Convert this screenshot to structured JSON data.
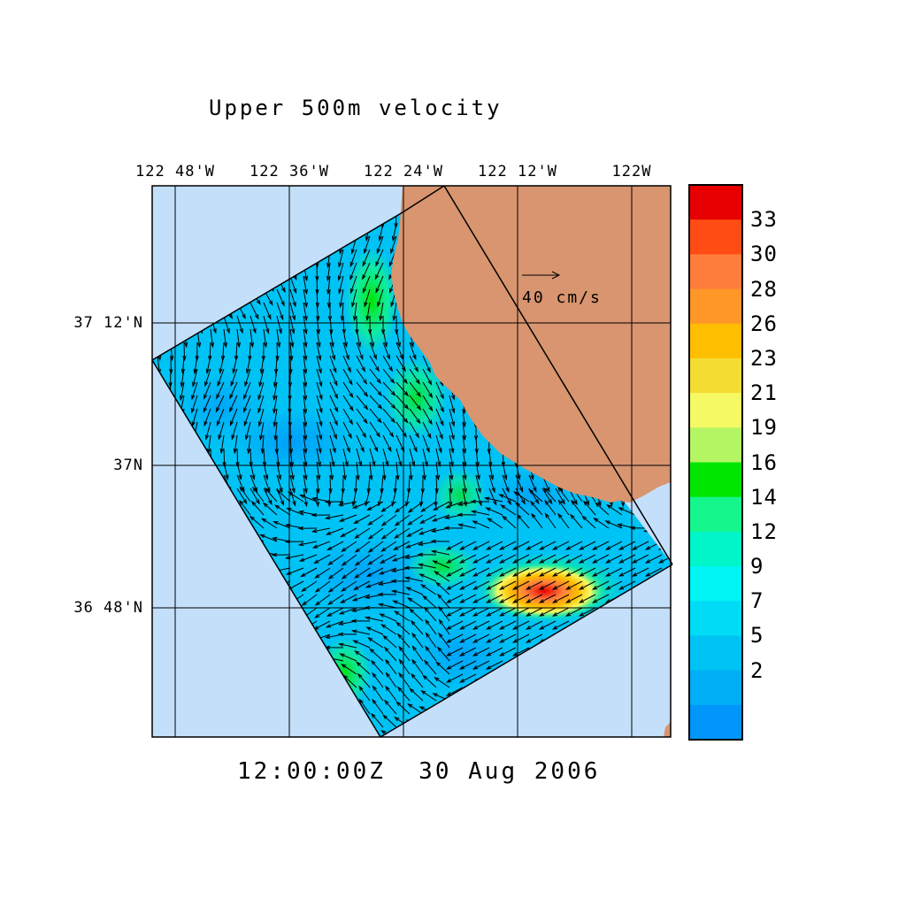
{
  "map": {
    "title": "Upper 500m velocity",
    "timestamp": "12:00:00Z  30 Aug 2006",
    "lon_labels": [
      "122 48'W",
      "122 36'W",
      "122 24'W",
      "122 12'W",
      "122W"
    ],
    "lat_labels": [
      "37 12'N",
      "37N",
      "36 48'N"
    ],
    "vector_scale_label": "40 cm/s",
    "colors": {
      "ocean": "#c4dffa",
      "land": "#d8956f",
      "frame": "#000000"
    }
  },
  "colorbar": {
    "labels": [
      "33",
      "30",
      "28",
      "26",
      "23",
      "21",
      "19",
      "16",
      "14",
      "12",
      "9",
      "7",
      "5",
      "2"
    ],
    "colors": [
      "#e60000",
      "#ff4b14",
      "#ff7d3c",
      "#ff9628",
      "#ffbe00",
      "#f5dc32",
      "#f5fa64",
      "#b4f564",
      "#00e600",
      "#14f58c",
      "#00f5c8",
      "#00f5f5",
      "#00dcf5",
      "#00c3f5",
      "#00aff5",
      "#0096fa"
    ]
  }
}
